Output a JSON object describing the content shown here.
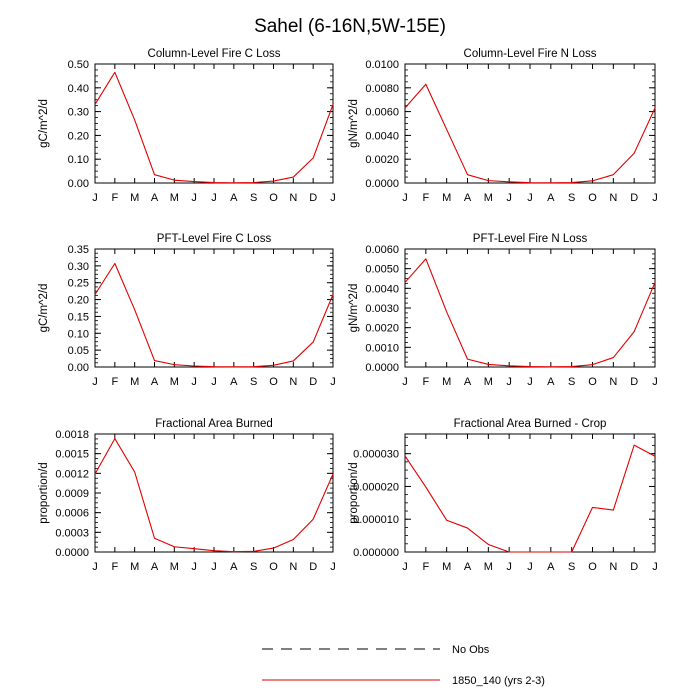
{
  "figure_title": "Sahel (6-16N,5W-15E)",
  "legend": {
    "placement": "bottom-center",
    "entries": [
      {
        "label": "No Obs",
        "style": "dashed",
        "color": "#000000"
      },
      {
        "label": "1850_140 (yrs 2-3)",
        "style": "solid",
        "color": "#e00000"
      }
    ]
  },
  "chart_data": [
    {
      "type": "line",
      "title": "Column-Level Fire C Loss",
      "xlabel": "",
      "ylabel": "gC/m^2/d",
      "categories": [
        "J",
        "F",
        "M",
        "A",
        "M",
        "J",
        "J",
        "A",
        "S",
        "O",
        "N",
        "D",
        "J"
      ],
      "ylim": [
        0,
        0.5
      ],
      "yticks": [
        0.0,
        0.1,
        0.2,
        0.3,
        0.4,
        0.5
      ],
      "ytick_labels": [
        "0.00",
        "0.10",
        "0.20",
        "0.30",
        "0.40",
        "0.50"
      ],
      "series": [
        {
          "name": "1850_140 (yrs 2-3)",
          "color": "#e00000",
          "values": [
            0.33,
            0.465,
            0.265,
            0.035,
            0.012,
            0.006,
            0.002,
            0.001,
            0.002,
            0.008,
            0.025,
            0.105,
            0.33
          ]
        }
      ]
    },
    {
      "type": "line",
      "title": "Column-Level Fire N Loss",
      "xlabel": "",
      "ylabel": "gN/m^2/d",
      "categories": [
        "J",
        "F",
        "M",
        "A",
        "M",
        "J",
        "J",
        "A",
        "S",
        "O",
        "N",
        "D",
        "J"
      ],
      "ylim": [
        0,
        0.01
      ],
      "yticks": [
        0.0,
        0.002,
        0.004,
        0.006,
        0.008,
        0.01
      ],
      "ytick_labels": [
        "0.0000",
        "0.0020",
        "0.0040",
        "0.0060",
        "0.0080",
        "0.0100"
      ],
      "series": [
        {
          "name": "1850_140 (yrs 2-3)",
          "color": "#e00000",
          "values": [
            0.0063,
            0.0083,
            0.0045,
            0.0007,
            0.0002,
            0.0001,
            3e-05,
            2e-05,
            4e-05,
            0.00018,
            0.0007,
            0.0025,
            0.0063
          ]
        }
      ]
    },
    {
      "type": "line",
      "title": "PFT-Level Fire C Loss",
      "xlabel": "",
      "ylabel": "gC/m^2/d",
      "categories": [
        "J",
        "F",
        "M",
        "A",
        "M",
        "J",
        "J",
        "A",
        "S",
        "O",
        "N",
        "D",
        "J"
      ],
      "ylim": [
        0,
        0.35
      ],
      "yticks": [
        0.0,
        0.05,
        0.1,
        0.15,
        0.2,
        0.25,
        0.3,
        0.35
      ],
      "ytick_labels": [
        "0.00",
        "0.05",
        "0.10",
        "0.15",
        "0.20",
        "0.25",
        "0.30",
        "0.35"
      ],
      "series": [
        {
          "name": "1850_140 (yrs 2-3)",
          "color": "#e00000",
          "values": [
            0.215,
            0.307,
            0.17,
            0.019,
            0.007,
            0.003,
            0.001,
            0.0005,
            0.001,
            0.005,
            0.018,
            0.074,
            0.215
          ]
        }
      ]
    },
    {
      "type": "line",
      "title": "PFT-Level Fire N Loss",
      "xlabel": "",
      "ylabel": "gN/m^2/d",
      "categories": [
        "J",
        "F",
        "M",
        "A",
        "M",
        "J",
        "J",
        "A",
        "S",
        "O",
        "N",
        "D",
        "J"
      ],
      "ylim": [
        0,
        0.006
      ],
      "yticks": [
        0.0,
        0.001,
        0.002,
        0.003,
        0.004,
        0.005,
        0.006
      ],
      "ytick_labels": [
        "0.0000",
        "0.0010",
        "0.0020",
        "0.0030",
        "0.0040",
        "0.0050",
        "0.0060"
      ],
      "series": [
        {
          "name": "1850_140 (yrs 2-3)",
          "color": "#e00000",
          "values": [
            0.0043,
            0.0055,
            0.0028,
            0.0004,
            0.00013,
            6e-05,
            2e-05,
            1e-05,
            2e-05,
            0.00012,
            0.00048,
            0.0018,
            0.0043
          ]
        }
      ]
    },
    {
      "type": "line",
      "title": "Fractional Area Burned",
      "xlabel": "",
      "ylabel": "proportion/d",
      "categories": [
        "J",
        "F",
        "M",
        "A",
        "M",
        "J",
        "J",
        "A",
        "S",
        "O",
        "N",
        "D",
        "J"
      ],
      "ylim": [
        0,
        0.0018
      ],
      "yticks": [
        0.0,
        0.0003,
        0.0006,
        0.0009,
        0.0012,
        0.0015,
        0.0018
      ],
      "ytick_labels": [
        "0.0000",
        "0.0003",
        "0.0006",
        "0.0009",
        "0.0012",
        "0.0015",
        "0.0018"
      ],
      "series": [
        {
          "name": "1850_140 (yrs 2-3)",
          "color": "#e00000",
          "values": [
            0.00119,
            0.00173,
            0.00122,
            0.00021,
            8e-05,
            5e-05,
            2e-05,
            5e-06,
            1e-05,
            6e-05,
            0.00019,
            0.0005,
            0.00119
          ]
        }
      ]
    },
    {
      "type": "line",
      "title": "Fractional Area Burned - Crop",
      "xlabel": "",
      "ylabel": "proportion/d",
      "categories": [
        "J",
        "F",
        "M",
        "A",
        "M",
        "J",
        "J",
        "A",
        "S",
        "O",
        "N",
        "D",
        "J"
      ],
      "ylim": [
        0,
        3.6e-05
      ],
      "yticks": [
        0.0,
        1e-05,
        2e-05,
        3e-05
      ],
      "ytick_labels": [
        "0.000000",
        "0.000010",
        "0.000020",
        "0.000030"
      ],
      "series": [
        {
          "name": "1850_140 (yrs 2-3)",
          "color": "#e00000",
          "values": [
            2.93e-05,
            1.98e-05,
            9.7e-06,
            7.3e-06,
            2.3e-06,
            0.0,
            0.0,
            0.0,
            0.0,
            1.36e-05,
            1.28e-05,
            3.26e-05,
            2.92e-05
          ]
        }
      ]
    }
  ]
}
